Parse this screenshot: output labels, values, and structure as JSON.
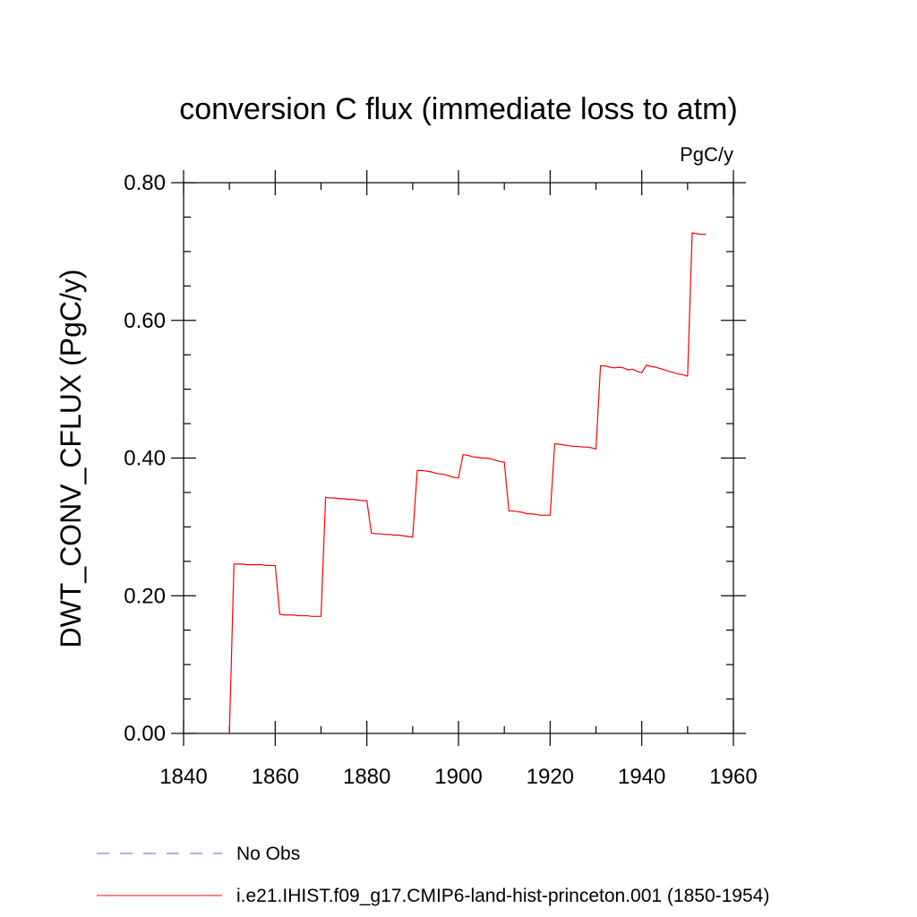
{
  "chart_data": {
    "type": "line",
    "title": "conversion C flux (immediate loss to atm)",
    "units_label": "PgC/y",
    "ylabel": "DWT_CONV_CFLUX  (PgC/y)",
    "xlabel": "",
    "xlim": [
      1840,
      1960
    ],
    "ylim": [
      0.0,
      0.8
    ],
    "x_ticks": [
      1840,
      1860,
      1880,
      1900,
      1920,
      1940,
      1960
    ],
    "x_tick_labels": [
      "1840",
      "1860",
      "1880",
      "1900",
      "1920",
      "1940",
      "1960"
    ],
    "y_ticks": [
      0.0,
      0.2,
      0.4,
      0.6,
      0.8
    ],
    "y_tick_labels": [
      "0.00",
      "0.20",
      "0.40",
      "0.60",
      "0.80"
    ],
    "grid": false,
    "legend_position": "bottom",
    "legend": [
      {
        "label": "No Obs",
        "color": "#6a5acd",
        "dash": "dashed"
      },
      {
        "label": "i.e21.IHIST.f09_g17.CMIP6-land-hist-princeton.001 (1850-1954)",
        "color": "#ff0000",
        "dash": "solid"
      }
    ],
    "series": [
      {
        "name": "i.e21.IHIST.f09_g17.CMIP6-land-hist-princeton.001 (1850-1954)",
        "color": "#ff0000",
        "x": [
          1850,
          1851,
          1852,
          1853,
          1854,
          1855,
          1856,
          1857,
          1858,
          1859,
          1860,
          1861,
          1862,
          1863,
          1864,
          1865,
          1866,
          1867,
          1868,
          1869,
          1870,
          1871,
          1872,
          1873,
          1874,
          1875,
          1876,
          1877,
          1878,
          1879,
          1880,
          1881,
          1882,
          1883,
          1884,
          1885,
          1886,
          1887,
          1888,
          1889,
          1890,
          1891,
          1892,
          1893,
          1894,
          1895,
          1896,
          1897,
          1898,
          1899,
          1900,
          1901,
          1902,
          1903,
          1904,
          1905,
          1906,
          1907,
          1908,
          1909,
          1910,
          1911,
          1912,
          1913,
          1914,
          1915,
          1916,
          1917,
          1918,
          1919,
          1920,
          1921,
          1922,
          1923,
          1924,
          1925,
          1926,
          1927,
          1928,
          1929,
          1930,
          1931,
          1932,
          1933,
          1934,
          1935,
          1936,
          1937,
          1938,
          1939,
          1940,
          1941,
          1942,
          1943,
          1944,
          1945,
          1946,
          1947,
          1948,
          1949,
          1950,
          1951,
          1952,
          1953,
          1954
        ],
        "values": [
          0.0,
          0.246,
          0.246,
          0.246,
          0.245,
          0.245,
          0.245,
          0.245,
          0.244,
          0.244,
          0.244,
          0.173,
          0.172,
          0.172,
          0.172,
          0.171,
          0.171,
          0.171,
          0.17,
          0.17,
          0.17,
          0.343,
          0.342,
          0.342,
          0.341,
          0.341,
          0.34,
          0.34,
          0.339,
          0.338,
          0.338,
          0.291,
          0.29,
          0.29,
          0.289,
          0.289,
          0.288,
          0.288,
          0.287,
          0.286,
          0.285,
          0.382,
          0.382,
          0.381,
          0.38,
          0.378,
          0.377,
          0.376,
          0.374,
          0.372,
          0.371,
          0.405,
          0.404,
          0.402,
          0.401,
          0.4,
          0.4,
          0.399,
          0.397,
          0.395,
          0.394,
          0.323,
          0.323,
          0.322,
          0.321,
          0.319,
          0.319,
          0.318,
          0.317,
          0.317,
          0.317,
          0.421,
          0.42,
          0.419,
          0.418,
          0.417,
          0.417,
          0.416,
          0.416,
          0.415,
          0.413,
          0.534,
          0.534,
          0.532,
          0.531,
          0.532,
          0.531,
          0.528,
          0.529,
          0.526,
          0.524,
          0.535,
          0.533,
          0.532,
          0.53,
          0.528,
          0.526,
          0.524,
          0.522,
          0.521,
          0.519,
          0.727,
          0.726,
          0.725,
          0.725
        ]
      }
    ]
  }
}
